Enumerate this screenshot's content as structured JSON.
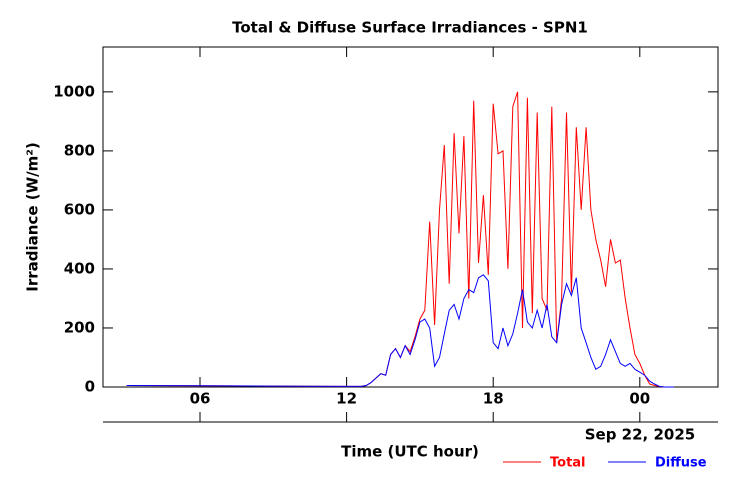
{
  "chart_data": {
    "type": "line",
    "title": "Total & Diffuse Surface Irradiances - SPN1",
    "x_label": "Time (UTC hour)",
    "y_label": "Irradiance (W/m²)",
    "date_label": "Sep 22, 2025",
    "x": [
      3,
      6,
      9,
      12,
      12.6,
      12.8,
      13.0,
      13.2,
      13.4,
      13.6,
      13.8,
      14.0,
      14.2,
      14.4,
      14.6,
      14.8,
      15.0,
      15.2,
      15.4,
      15.6,
      15.8,
      16.0,
      16.2,
      16.4,
      16.6,
      16.8,
      17.0,
      17.2,
      17.4,
      17.6,
      17.8,
      18.0,
      18.2,
      18.4,
      18.6,
      18.8,
      19.0,
      19.2,
      19.4,
      19.6,
      19.8,
      20.0,
      20.2,
      20.4,
      20.6,
      20.8,
      21.0,
      21.2,
      21.4,
      21.6,
      21.8,
      22.0,
      22.2,
      22.4,
      22.6,
      22.8,
      23.0,
      23.2,
      23.4,
      23.6,
      23.8,
      24.0,
      24.2,
      24.4,
      24.6,
      24.8,
      25.0,
      25.2,
      25.4
    ],
    "series": [
      {
        "name": "Total",
        "color": "#ff0000",
        "values": [
          5,
          4,
          3,
          2,
          2,
          5,
          15,
          30,
          45,
          40,
          110,
          130,
          100,
          140,
          120,
          170,
          230,
          260,
          560,
          210,
          600,
          820,
          350,
          860,
          520,
          850,
          300,
          970,
          420,
          650,
          380,
          960,
          790,
          800,
          400,
          950,
          1000,
          200,
          980,
          250,
          930,
          300,
          260,
          950,
          150,
          300,
          930,
          320,
          880,
          600,
          880,
          600,
          500,
          430,
          340,
          500,
          420,
          430,
          300,
          200,
          110,
          80,
          40,
          10,
          5,
          2,
          0,
          0,
          0
        ]
      },
      {
        "name": "Diffuse",
        "color": "#0000ff",
        "values": [
          5,
          4,
          3,
          2,
          2,
          5,
          15,
          30,
          45,
          40,
          110,
          130,
          100,
          140,
          110,
          160,
          220,
          230,
          200,
          70,
          100,
          180,
          260,
          280,
          230,
          300,
          330,
          320,
          370,
          380,
          360,
          150,
          130,
          200,
          140,
          180,
          250,
          330,
          220,
          200,
          260,
          200,
          280,
          170,
          150,
          280,
          350,
          310,
          370,
          200,
          150,
          100,
          60,
          70,
          110,
          160,
          120,
          80,
          70,
          80,
          60,
          50,
          40,
          20,
          10,
          2,
          0,
          0,
          0
        ]
      }
    ],
    "xlim": [
      2.03,
      27.2
    ],
    "xticks": [
      {
        "value": 6,
        "label": "06"
      },
      12,
      18,
      {
        "value": 24,
        "label": "00"
      }
    ],
    "ylim": [
      0,
      1152
    ],
    "yticks": [
      0,
      200,
      400,
      600,
      800,
      1000
    ],
    "legend": "bottom-right"
  }
}
